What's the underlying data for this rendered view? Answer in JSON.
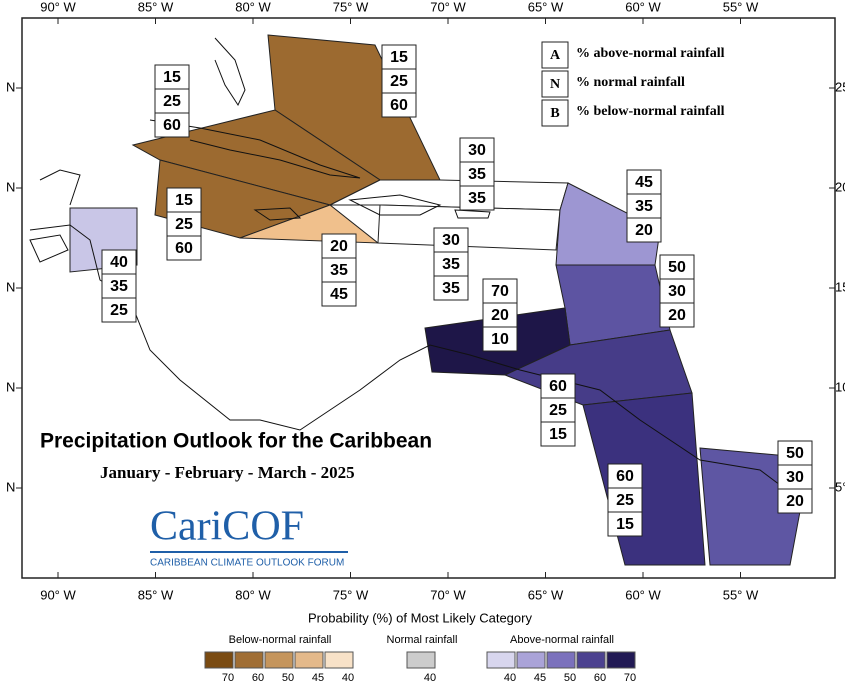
{
  "map": {
    "title": "Precipitation Outlook for the Caribbean",
    "subtitle": "January - February - March - 2025",
    "logo": {
      "name": "CariCOF",
      "tagline": "CARIBBEAN CLIMATE OUTLOOK FORUM"
    },
    "longitude_labels": [
      "90° W",
      "85° W",
      "80° W",
      "75° W",
      "70° W",
      "65° W",
      "60° W",
      "55° W"
    ],
    "latitude_labels": [
      "25",
      "20",
      "15",
      "10",
      "5°"
    ],
    "latitude_hemisphere": "N",
    "key": [
      {
        "letter": "A",
        "text": "% above-normal rainfall"
      },
      {
        "letter": "N",
        "text": "% normal rainfall"
      },
      {
        "letter": "B",
        "text": "% below-normal rainfall"
      }
    ],
    "regions": [
      {
        "color": "#9c6a30",
        "values": [
          15,
          25,
          60
        ]
      },
      {
        "color": "#9c6a30",
        "values": [
          15,
          25,
          60
        ]
      },
      {
        "color": "#9c6a30",
        "values": [
          15,
          25,
          60
        ]
      },
      {
        "color": "#f0c08c",
        "values": [
          20,
          35,
          45
        ]
      },
      {
        "color": "#ffffff",
        "values": [
          30,
          35,
          35
        ]
      },
      {
        "color": "#ffffff",
        "values": [
          30,
          35,
          35
        ]
      },
      {
        "color": "#c9c6e7",
        "values": [
          40,
          35,
          25
        ]
      },
      {
        "color": "#9d96d2",
        "values": [
          45,
          35,
          20
        ]
      },
      {
        "color": "#5d54a2",
        "values": [
          50,
          30,
          20
        ]
      },
      {
        "color": "#1e1648",
        "values": [
          70,
          20,
          10
        ]
      },
      {
        "color": "#463c88",
        "values": [
          60,
          25,
          15
        ]
      },
      {
        "color": "#3b317e",
        "values": [
          60,
          25,
          15
        ]
      },
      {
        "color": "#5e56a3",
        "values": [
          50,
          30,
          20
        ]
      }
    ],
    "legend": {
      "title": "Probability (%) of Most Likely Category",
      "groups": [
        {
          "name": "Below-normal rainfall",
          "colors": [
            "#7a4b12",
            "#a06e34",
            "#c5955c",
            "#e4b98a",
            "#f8e2c8"
          ],
          "labels": [
            70,
            60,
            50,
            45,
            40
          ]
        },
        {
          "name": "Normal rainfall",
          "colors": [
            "#cccccc"
          ],
          "labels": [
            40
          ]
        },
        {
          "name": "Above-normal rainfall",
          "colors": [
            "#d8d6ee",
            "#aaa3d8",
            "#7b71bc",
            "#4c4290",
            "#221a55"
          ],
          "labels": [
            40,
            45,
            50,
            60,
            70
          ]
        }
      ]
    }
  }
}
